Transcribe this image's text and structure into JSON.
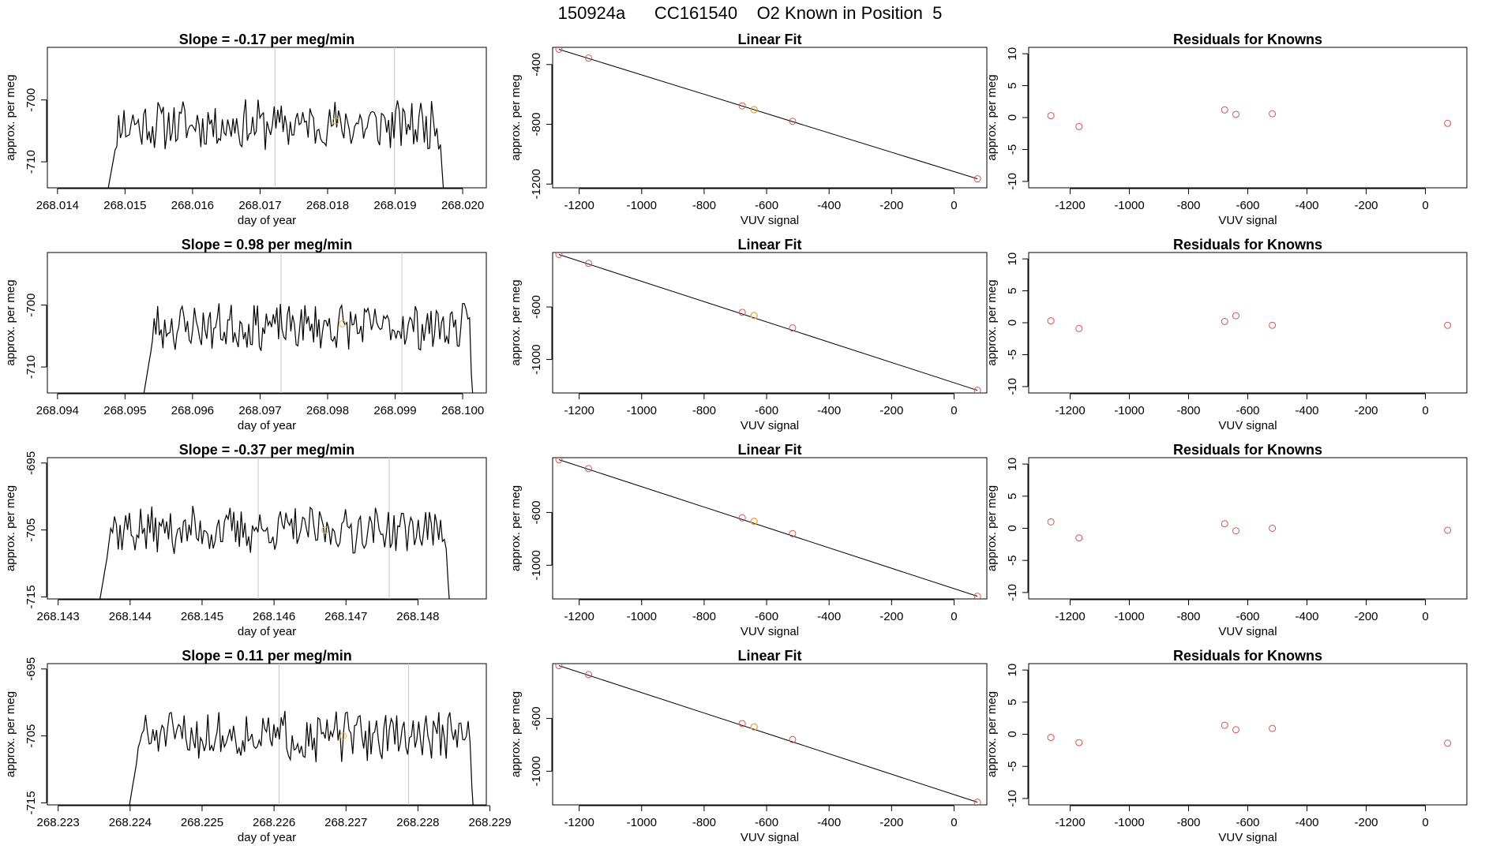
{
  "figure_title": "150924a      CC161540    O2 Known in Position  5",
  "colors": {
    "line": "#000000",
    "point": "#d9534f",
    "highlight": "#f0a830",
    "vline": "#c8c8c8"
  },
  "chart_data": [
    {
      "type": "line",
      "title": "Slope =  -0.17  per meg/min",
      "xlabel": "day of year",
      "ylabel": "approx. per meg",
      "xlim": [
        268.01385,
        268.02035
      ],
      "ylim": [
        -714.2,
        -691.5
      ],
      "xticks": [
        "268.014",
        "268.015",
        "268.016",
        "268.017",
        "268.018",
        "268.019",
        "268.020"
      ],
      "yticks": [
        "-710",
        "-700"
      ],
      "vlines": [
        268.01722,
        268.01899
      ],
      "highlight": [
        268.01812,
        -703.4
      ],
      "series": {
        "x_start": 268.01472,
        "x_end": 268.01975,
        "base": -704.0,
        "amp": 3.5,
        "seed": 11
      }
    },
    {
      "type": "line",
      "title": "Linear Fit",
      "xlabel": "VUV signal",
      "ylabel": "approx. per meg",
      "xlim": [
        -1285,
        105
      ],
      "ylim": [
        -1225,
        -285
      ],
      "xticks": [
        "-1200",
        "-1000",
        "-800",
        "-600",
        "-400",
        "-200",
        "0"
      ],
      "yticks": [
        "-1200",
        "-800",
        "-400"
      ],
      "fit": [
        [
          -1265,
          -298
        ],
        [
          75,
          -1165
        ]
      ],
      "points": [
        [
          -1265,
          -298
        ],
        [
          -1170,
          -357
        ],
        [
          -678,
          -677
        ],
        [
          -640,
          -702
        ],
        [
          -517,
          -780
        ],
        [
          75,
          -1165
        ]
      ],
      "highlight": [
        -640,
        -702
      ]
    },
    {
      "type": "scatter",
      "title": "Residuals for Knowns",
      "xlabel": "VUV signal",
      "ylabel": "approx. per meg",
      "xlim": [
        -1340,
        140
      ],
      "ylim": [
        -11,
        11
      ],
      "xticks": [
        "-1200",
        "-1000",
        "-800",
        "-600",
        "-400",
        "-200",
        "0"
      ],
      "yticks": [
        "-10",
        "-5",
        "0",
        "5",
        "10"
      ],
      "points": [
        [
          -1265,
          0.3
        ],
        [
          -1170,
          -1.4
        ],
        [
          -678,
          1.2
        ],
        [
          -640,
          0.5
        ],
        [
          -517,
          0.6
        ],
        [
          75,
          -0.9
        ]
      ]
    },
    {
      "type": "line",
      "title": "Slope =  0.98  per meg/min",
      "xlabel": "day of year",
      "ylabel": "approx. per meg",
      "xlim": [
        268.09385,
        268.10035
      ],
      "ylim": [
        -714.2,
        -691.5
      ],
      "xticks": [
        "268.094",
        "268.095",
        "268.096",
        "268.097",
        "268.098",
        "268.099",
        "268.100"
      ],
      "yticks": [
        "-710",
        "-700"
      ],
      "vlines": [
        268.09731,
        268.0991
      ],
      "highlight": [
        268.09822,
        -703.0
      ],
      "series": {
        "x_start": 268.09525,
        "x_end": 268.10018,
        "base": -703.5,
        "amp": 3.2,
        "seed": 23
      }
    },
    {
      "type": "line",
      "title": "Linear Fit",
      "xlabel": "VUV signal",
      "ylabel": "approx. per meg",
      "xlim": [
        -1285,
        105
      ],
      "ylim": [
        -1255,
        -185
      ],
      "xticks": [
        "-1200",
        "-1000",
        "-800",
        "-600",
        "-400",
        "-200",
        "0"
      ],
      "yticks": [
        "-1000",
        "-600"
      ],
      "fit": [
        [
          -1265,
          -200
        ],
        [
          75,
          -1235
        ]
      ],
      "points": [
        [
          -1265,
          -200
        ],
        [
          -1170,
          -268
        ],
        [
          -678,
          -641
        ],
        [
          -640,
          -665
        ],
        [
          -517,
          -760
        ],
        [
          75,
          -1235
        ]
      ],
      "highlight": [
        -640,
        -665
      ]
    },
    {
      "type": "scatter",
      "title": "Residuals for Knowns",
      "xlabel": "VUV signal",
      "ylabel": "approx. per meg",
      "xlim": [
        -1340,
        140
      ],
      "ylim": [
        -11,
        11
      ],
      "xticks": [
        "-1200",
        "-1000",
        "-800",
        "-600",
        "-400",
        "-200",
        "0"
      ],
      "yticks": [
        "-10",
        "-5",
        "0",
        "5",
        "10"
      ],
      "points": [
        [
          -1265,
          0.3
        ],
        [
          -1170,
          -0.9
        ],
        [
          -678,
          0.2
        ],
        [
          -640,
          1.1
        ],
        [
          -517,
          -0.4
        ],
        [
          75,
          -0.4
        ]
      ]
    },
    {
      "type": "line",
      "title": "Slope =  -0.37  per meg/min",
      "xlabel": "day of year",
      "ylabel": "approx. per meg",
      "xlim": [
        268.14285,
        268.14895
      ],
      "ylim": [
        -715.3,
        -694.2
      ],
      "xticks": [
        "268.143",
        "268.144",
        "268.145",
        "268.146",
        "268.147",
        "268.148"
      ],
      "yticks": [
        "-715",
        "-705",
        "-695"
      ],
      "vlines": [
        268.14578,
        268.1476
      ],
      "highlight": [
        268.14671,
        -705.0
      ],
      "series": {
        "x_start": 268.14355,
        "x_end": 268.14847,
        "base": -705.0,
        "amp": 3.0,
        "seed": 37
      }
    },
    {
      "type": "line",
      "title": "Linear Fit",
      "xlabel": "VUV signal",
      "ylabel": "approx. per meg",
      "xlim": [
        -1285,
        105
      ],
      "ylim": [
        -1255,
        -185
      ],
      "xticks": [
        "-1200",
        "-1000",
        "-800",
        "-600",
        "-400",
        "-200",
        "0"
      ],
      "yticks": [
        "-1000",
        "-600"
      ],
      "fit": [
        [
          -1265,
          -200
        ],
        [
          75,
          -1235
        ]
      ],
      "points": [
        [
          -1265,
          -200
        ],
        [
          -1170,
          -268
        ],
        [
          -678,
          -641
        ],
        [
          -640,
          -667
        ],
        [
          -517,
          -760
        ],
        [
          75,
          -1235
        ]
      ],
      "highlight": [
        -640,
        -667
      ]
    },
    {
      "type": "scatter",
      "title": "Residuals for Knowns",
      "xlabel": "VUV signal",
      "ylabel": "approx. per meg",
      "xlim": [
        -1340,
        140
      ],
      "ylim": [
        -11,
        11
      ],
      "xticks": [
        "-1200",
        "-1000",
        "-800",
        "-600",
        "-400",
        "-200",
        "0"
      ],
      "yticks": [
        "-10",
        "-5",
        "0",
        "5",
        "10"
      ],
      "points": [
        [
          -1265,
          1.0
        ],
        [
          -1170,
          -1.5
        ],
        [
          -678,
          0.7
        ],
        [
          -640,
          -0.4
        ],
        [
          -517,
          0.0
        ],
        [
          75,
          -0.3
        ]
      ]
    },
    {
      "type": "line",
      "title": "Slope =  0.11  per meg/min",
      "xlabel": "day of year",
      "ylabel": "approx. per meg",
      "xlim": [
        268.22285,
        268.22895
      ],
      "ylim": [
        -715.3,
        -694.2
      ],
      "xticks": [
        "268.223",
        "268.224",
        "268.225",
        "268.226",
        "268.227",
        "268.228",
        "268.229"
      ],
      "yticks": [
        "-715",
        "-705",
        "-695"
      ],
      "vlines": [
        268.22607,
        268.22787
      ],
      "highlight": [
        268.22696,
        -705.0
      ],
      "series": {
        "x_start": 268.22396,
        "x_end": 268.2288,
        "base": -705.0,
        "amp": 3.2,
        "seed": 51
      }
    },
    {
      "type": "line",
      "title": "Linear Fit",
      "xlabel": "VUV signal",
      "ylabel": "approx. per meg",
      "xlim": [
        -1285,
        105
      ],
      "ylim": [
        -1255,
        -185
      ],
      "xticks": [
        "-1200",
        "-1000",
        "-800",
        "-600",
        "-400",
        "-200",
        "0"
      ],
      "yticks": [
        "-1000",
        "-600"
      ],
      "fit": [
        [
          -1265,
          -200
        ],
        [
          75,
          -1235
        ]
      ],
      "points": [
        [
          -1265,
          -200
        ],
        [
          -1170,
          -268
        ],
        [
          -678,
          -639
        ],
        [
          -640,
          -665
        ],
        [
          -517,
          -760
        ],
        [
          75,
          -1235
        ]
      ],
      "highlight": [
        -640,
        -665
      ]
    },
    {
      "type": "scatter",
      "title": "Residuals for Knowns",
      "xlabel": "VUV signal",
      "ylabel": "approx. per meg",
      "xlim": [
        -1340,
        140
      ],
      "ylim": [
        -11,
        11
      ],
      "xticks": [
        "-1200",
        "-1000",
        "-800",
        "-600",
        "-400",
        "-200",
        "0"
      ],
      "yticks": [
        "-10",
        "-5",
        "0",
        "5",
        "10"
      ],
      "points": [
        [
          -1265,
          -0.5
        ],
        [
          -1170,
          -1.3
        ],
        [
          -678,
          1.4
        ],
        [
          -640,
          0.7
        ],
        [
          -517,
          0.9
        ],
        [
          75,
          -1.4
        ]
      ]
    }
  ]
}
